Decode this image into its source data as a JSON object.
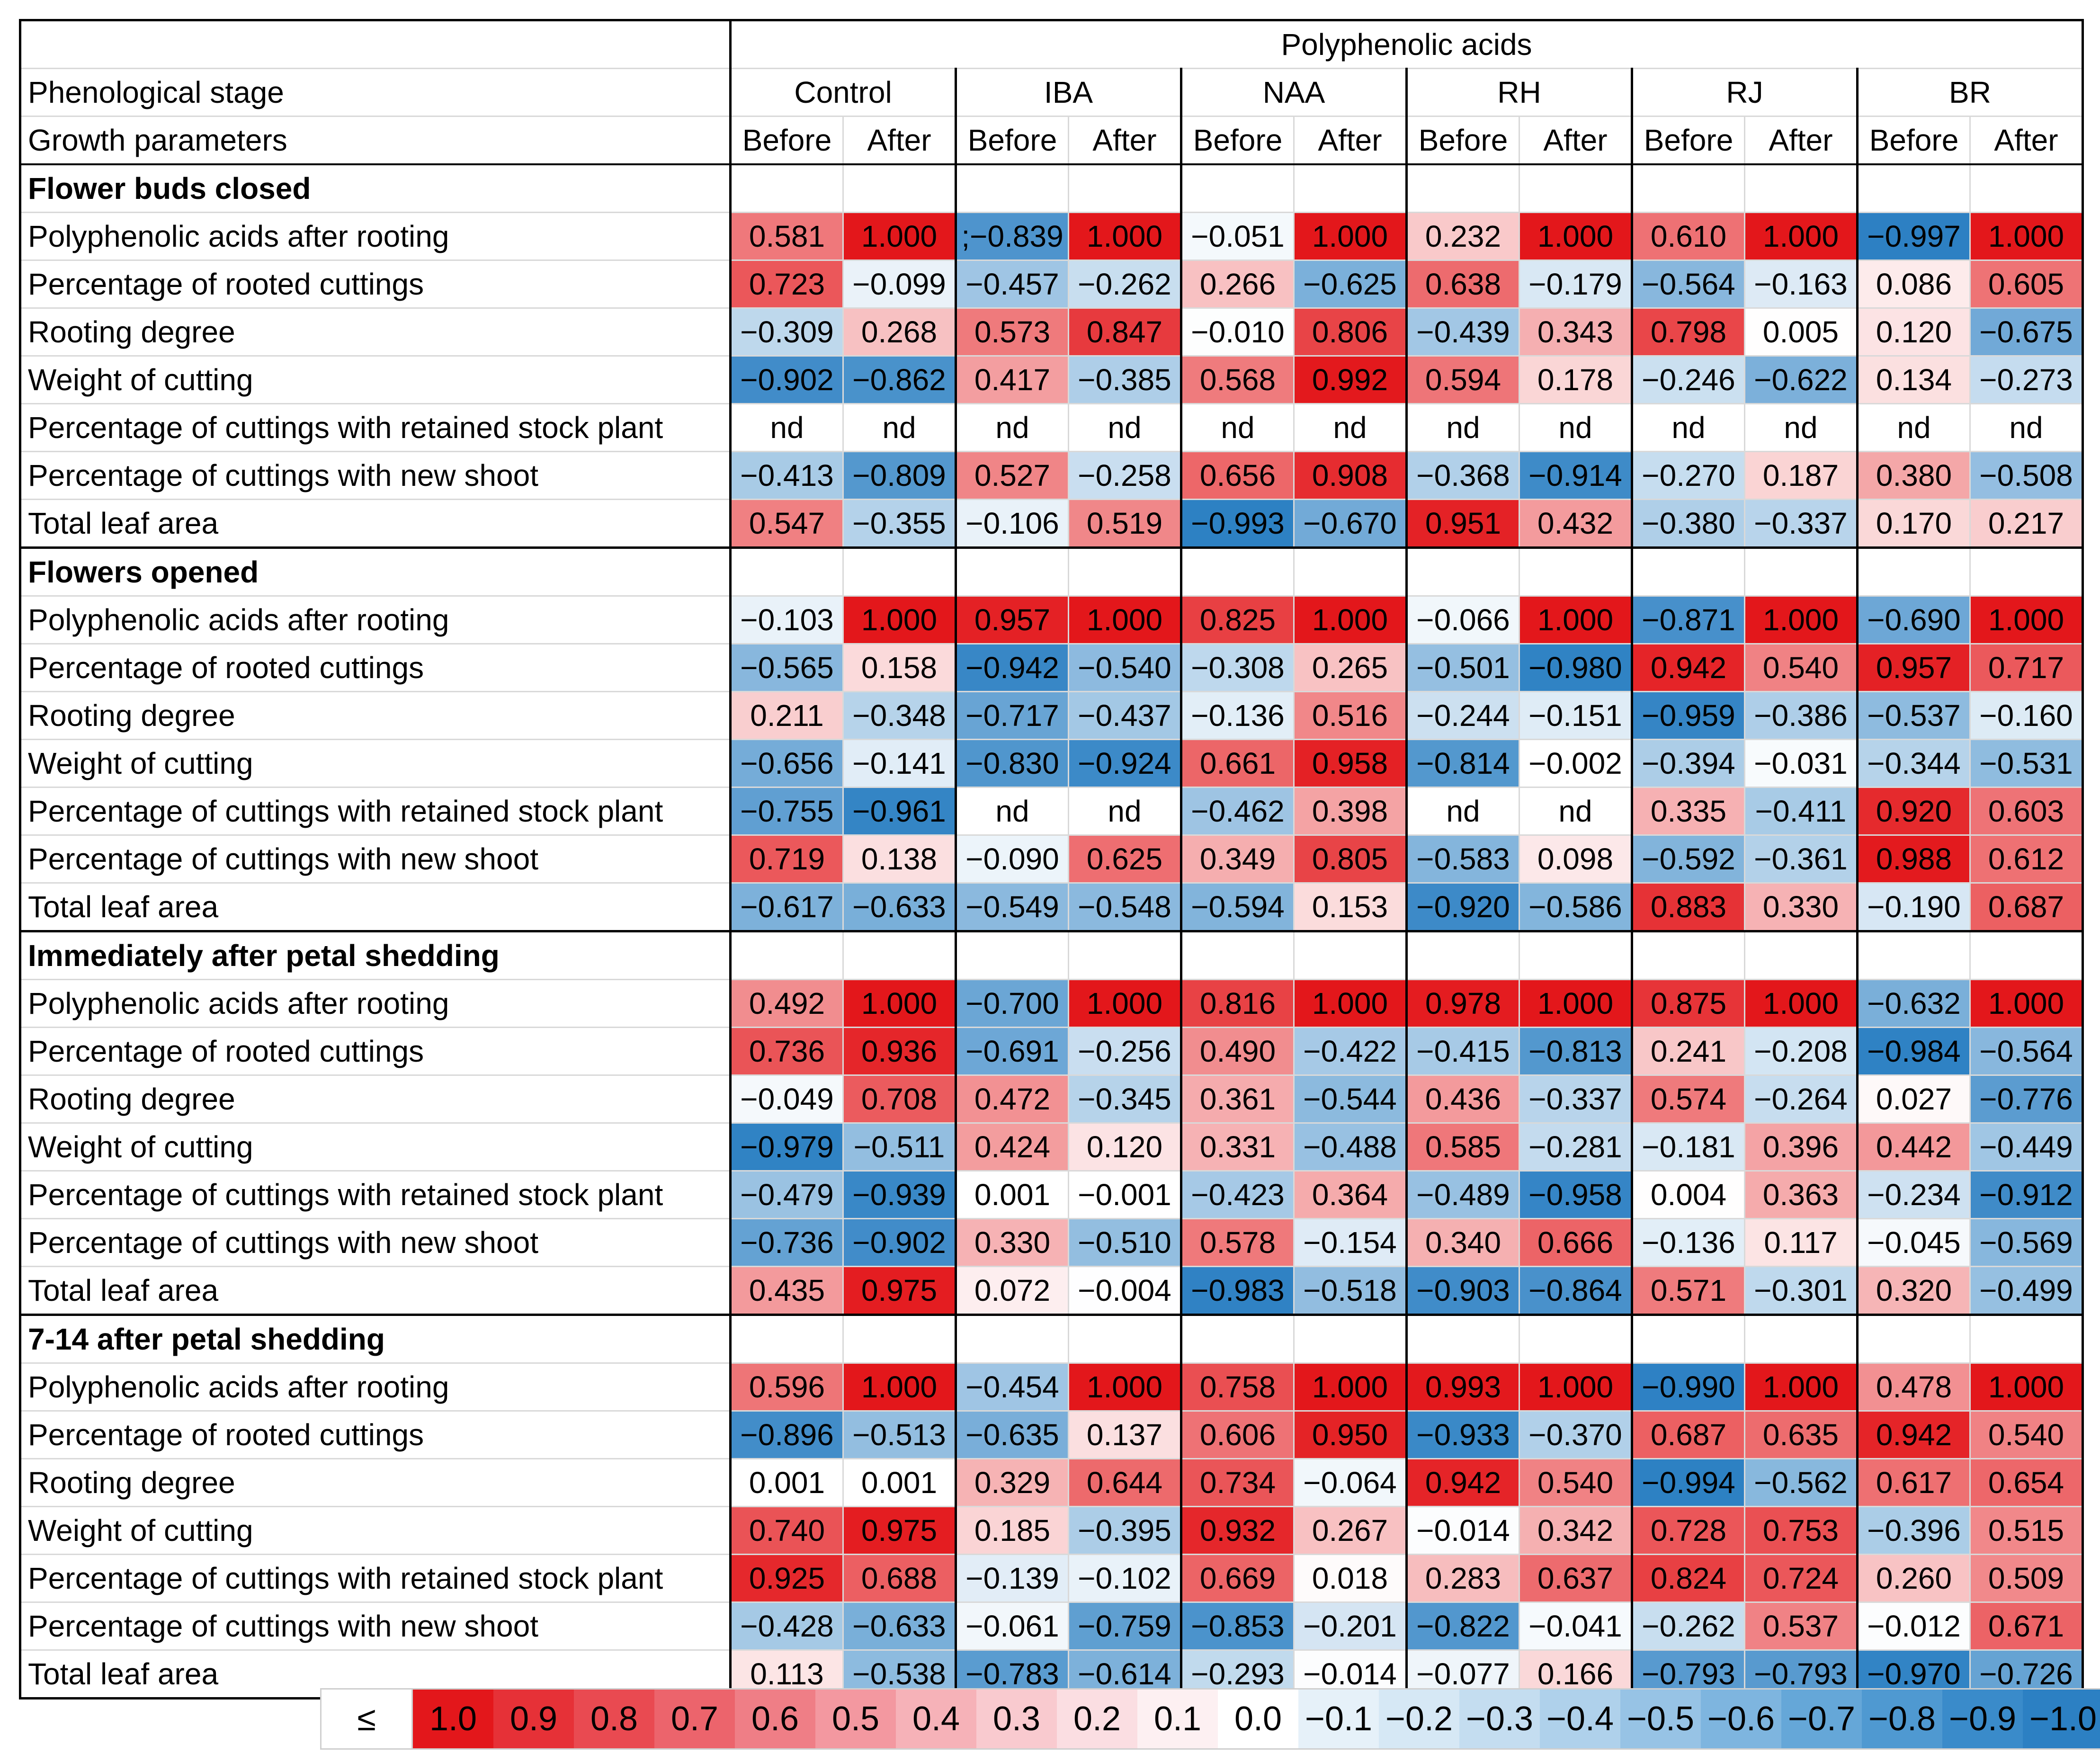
{
  "chart_data": {
    "type": "table",
    "title": "Polyphenolic acids",
    "corner_rows": [
      "Phenological stage",
      "Growth parameters"
    ],
    "groups": [
      "Control",
      "IBA",
      "NAA",
      "RH",
      "RJ",
      "BR"
    ],
    "subcolumns": [
      "Before",
      "After"
    ],
    "sections": [
      {
        "stage": "Flower buds closed",
        "rows": [
          {
            "label": "Polyphenolic acids after rooting",
            "values": [
              "0.581",
              "1.000",
              ";−0.839",
              "1.000",
              "−0.051",
              "1.000",
              "0.232",
              "1.000",
              "0.610",
              "1.000",
              "−0.997",
              "1.000"
            ]
          },
          {
            "label": "Percentage of rooted cuttings",
            "values": [
              "0.723",
              "−0.099",
              "−0.457",
              "−0.262",
              "0.266",
              "−0.625",
              "0.638",
              "−0.179",
              "−0.564",
              "−0.163",
              "0.086",
              "0.605"
            ]
          },
          {
            "label": "Rooting degree",
            "values": [
              "−0.309",
              "0.268",
              "0.573",
              "0.847",
              "−0.010",
              "0.806",
              "−0.439",
              "0.343",
              "0.798",
              "0.005",
              "0.120",
              "−0.675"
            ]
          },
          {
            "label": "Weight of cutting",
            "values": [
              "−0.902",
              "−0.862",
              "0.417",
              "−0.385",
              "0.568",
              "0.992",
              "0.594",
              "0.178",
              "−0.246",
              "−0.622",
              "0.134",
              "−0.273"
            ]
          },
          {
            "label": "Percentage of cuttings with retained stock plant",
            "values": [
              "nd",
              "nd",
              "nd",
              "nd",
              "nd",
              "nd",
              "nd",
              "nd",
              "nd",
              "nd",
              "nd",
              "nd"
            ]
          },
          {
            "label": "Percentage of cuttings with new shoot",
            "values": [
              "−0.413",
              "−0.809",
              "0.527",
              "−0.258",
              "0.656",
              "0.908",
              "−0.368",
              "−0.914",
              "−0.270",
              "0.187",
              "0.380",
              "−0.508"
            ]
          },
          {
            "label": "Total leaf area",
            "values": [
              "0.547",
              "−0.355",
              "−0.106",
              "0.519",
              "−0.993",
              "−0.670",
              "0.951",
              "0.432",
              "−0.380",
              "−0.337",
              "0.170",
              "0.217"
            ]
          }
        ]
      },
      {
        "stage": "Flowers opened",
        "rows": [
          {
            "label": "Polyphenolic acids after rooting",
            "values": [
              "−0.103",
              "1.000",
              "0.957",
              "1.000",
              "0.825",
              "1.000",
              "−0.066",
              "1.000",
              "−0.871",
              "1.000",
              "−0.690",
              "1.000"
            ]
          },
          {
            "label": "Percentage of rooted cuttings",
            "values": [
              "−0.565",
              "0.158",
              "−0.942",
              "−0.540",
              "−0.308",
              "0.265",
              "−0.501",
              "−0.980",
              "0.942",
              "0.540",
              "0.957",
              "0.717"
            ]
          },
          {
            "label": "Rooting degree",
            "values": [
              "0.211",
              "−0.348",
              "−0.717",
              "−0.437",
              "−0.136",
              "0.516",
              "−0.244",
              "−0.151",
              "−0.959",
              "−0.386",
              "−0.537",
              "−0.160"
            ]
          },
          {
            "label": "Weight of cutting",
            "values": [
              "−0.656",
              "−0.141",
              "−0.830",
              "−0.924",
              "0.661",
              "0.958",
              "−0.814",
              "−0.002",
              "−0.394",
              "−0.031",
              "−0.344",
              "−0.531"
            ]
          },
          {
            "label": "Percentage of cuttings with retained stock plant",
            "values": [
              "−0.755",
              "−0.961",
              "nd",
              "nd",
              "−0.462",
              "0.398",
              "nd",
              "nd",
              "0.335",
              "−0.411",
              "0.920",
              "0.603"
            ]
          },
          {
            "label": "Percentage of cuttings with new shoot",
            "values": [
              "0.719",
              "0.138",
              "−0.090",
              "0.625",
              "0.349",
              "0.805",
              "−0.583",
              "0.098",
              "−0.592",
              "−0.361",
              "0.988",
              "0.612"
            ]
          },
          {
            "label": "Total leaf area",
            "values": [
              "−0.617",
              "−0.633",
              "−0.549",
              "−0.548",
              "−0.594",
              "0.153",
              "−0.920",
              "−0.586",
              "0.883",
              "0.330",
              "−0.190",
              "0.687"
            ]
          }
        ]
      },
      {
        "stage": "Immediately after petal shedding",
        "rows": [
          {
            "label": "Polyphenolic acids after rooting",
            "values": [
              "0.492",
              "1.000",
              "−0.700",
              "1.000",
              "0.816",
              "1.000",
              "0.978",
              "1.000",
              "0.875",
              "1.000",
              "−0.632",
              "1.000"
            ]
          },
          {
            "label": "Percentage of rooted cuttings",
            "values": [
              "0.736",
              "0.936",
              "−0.691",
              "−0.256",
              "0.490",
              "−0.422",
              "−0.415",
              "−0.813",
              "0.241",
              "−0.208",
              "−0.984",
              "−0.564"
            ]
          },
          {
            "label": "Rooting degree",
            "values": [
              "−0.049",
              "0.708",
              "0.472",
              "−0.345",
              "0.361",
              "−0.544",
              "0.436",
              "−0.337",
              "0.574",
              "−0.264",
              "0.027",
              "−0.776"
            ]
          },
          {
            "label": "Weight of cutting",
            "values": [
              "−0.979",
              "−0.511",
              "0.424",
              "0.120",
              "0.331",
              "−0.488",
              "0.585",
              "−0.281",
              "−0.181",
              "0.396",
              "0.442",
              "−0.449"
            ]
          },
          {
            "label": "Percentage of cuttings with retained stock plant",
            "values": [
              "−0.479",
              "−0.939",
              "0.001",
              "−0.001",
              "−0.423",
              "0.364",
              "−0.489",
              "−0.958",
              "0.004",
              "0.363",
              "−0.234",
              "−0.912"
            ]
          },
          {
            "label": "Percentage of cuttings with new shoot",
            "values": [
              "−0.736",
              "−0.902",
              "0.330",
              "−0.510",
              "0.578",
              "−0.154",
              "0.340",
              "0.666",
              "−0.136",
              "0.117",
              "−0.045",
              "−0.569"
            ]
          },
          {
            "label": "Total leaf area",
            "values": [
              "0.435",
              "0.975",
              "0.072",
              "−0.004",
              "−0.983",
              "−0.518",
              "−0.903",
              "−0.864",
              "0.571",
              "−0.301",
              "0.320",
              "−0.499"
            ]
          }
        ]
      },
      {
        "stage": "7-14 after petal shedding",
        "rows": [
          {
            "label": "Polyphenolic acids after rooting",
            "values": [
              "0.596",
              "1.000",
              "−0.454",
              "1.000",
              "0.758",
              "1.000",
              "0.993",
              "1.000",
              "−0.990",
              "1.000",
              "0.478",
              "1.000"
            ]
          },
          {
            "label": "Percentage of rooted cuttings",
            "values": [
              "−0.896",
              "−0.513",
              "−0.635",
              "0.137",
              "0.606",
              "0.950",
              "−0.933",
              "−0.370",
              "0.687",
              "0.635",
              "0.942",
              "0.540"
            ]
          },
          {
            "label": "Rooting degree",
            "values": [
              "0.001",
              "0.001",
              "0.329",
              "0.644",
              "0.734",
              "−0.064",
              "0.942",
              "0.540",
              "−0.994",
              "−0.562",
              "0.617",
              "0.654"
            ]
          },
          {
            "label": "Weight of cutting",
            "values": [
              "0.740",
              "0.975",
              "0.185",
              "−0.395",
              "0.932",
              "0.267",
              "−0.014",
              "0.342",
              "0.728",
              "0.753",
              "−0.396",
              "0.515"
            ]
          },
          {
            "label": "Percentage of cuttings with retained stock plant",
            "values": [
              "0.925",
              "0.688",
              "−0.139",
              "−0.102",
              "0.669",
              "0.018",
              "0.283",
              "0.637",
              "0.824",
              "0.724",
              "0.260",
              "0.509"
            ]
          },
          {
            "label": "Percentage of cuttings with new shoot",
            "values": [
              "−0.428",
              "−0.633",
              "−0.061",
              "−0.759",
              "−0.853",
              "−0.201",
              "−0.822",
              "−0.041",
              "−0.262",
              "0.537",
              "−0.012",
              "0.671"
            ]
          },
          {
            "label": "Total leaf area",
            "values": [
              "0.113",
              "−0.538",
              "−0.783",
              "−0.614",
              "−0.293",
              "−0.014",
              "−0.077",
              "0.166",
              "−0.793",
              "−0.793",
              "−0.970",
              "−0.726"
            ]
          }
        ]
      }
    ],
    "legend": {
      "prefix": "≤",
      "labels": [
        "1.0",
        "0.9",
        "0.8",
        "0.7",
        "0.6",
        "0.5",
        "0.4",
        "0.3",
        "0.2",
        "0.1",
        "0.0",
        "−0.1",
        "−0.2",
        "−0.3",
        "−0.4",
        "−0.5",
        "−0.6",
        "−0.7",
        "−0.8",
        "−0.9",
        "−1.0"
      ],
      "colors": [
        "#e3171b",
        "#e63137",
        "#e94a51",
        "#ec646c",
        "#ef7e86",
        "#f398a0",
        "#f6b2b8",
        "#f9cacf",
        "#fbdee2",
        "#fdf0f2",
        "#ffffff",
        "#e6f1f9",
        "#d6e8f5",
        "#c4ddf0",
        "#afd1eb",
        "#97c3e5",
        "#7eb5df",
        "#65a7d8",
        "#4f99d1",
        "#3a8bca",
        "#2c80c3"
      ]
    },
    "colors": {
      "positive_max": "#e3171b",
      "negative_max": "#2c80c3",
      "neutral": "#ffffff",
      "nd_cell": "#ffffff"
    }
  }
}
